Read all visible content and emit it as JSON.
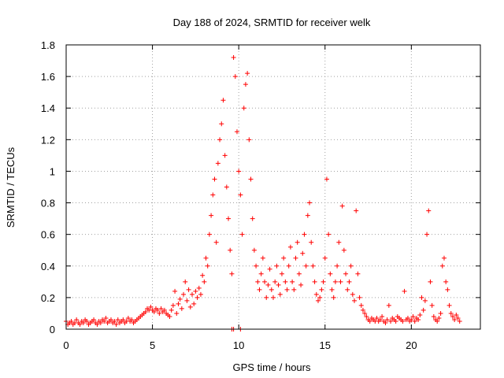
{
  "chart_data": {
    "type": "scatter",
    "title": "Day 188 of 2024, SRMTID for receiver welk",
    "xlabel": "GPS time / hours",
    "ylabel": "SRMTID / TECUs",
    "xlim": [
      0,
      24
    ],
    "ylim": [
      0,
      1.8
    ],
    "xticks": [
      0,
      5,
      10,
      15,
      20
    ],
    "yticks": [
      0,
      0.2,
      0.4,
      0.6,
      0.8,
      1,
      1.2,
      1.4,
      1.6,
      1.8
    ],
    "xtick_labels": [
      "0",
      "5",
      "10",
      "15",
      "20"
    ],
    "ytick_labels": [
      "0",
      "0.2",
      "0.4",
      "0.6",
      "0.8",
      "1",
      "1.2",
      "1.4",
      "1.6",
      "1.8"
    ],
    "grid": true,
    "marker": "+",
    "color": "#ff0000",
    "series": [
      {
        "name": "SRMTID",
        "points": [
          [
            0.0,
            0.05
          ],
          [
            0.1,
            0.03
          ],
          [
            0.2,
            0.04
          ],
          [
            0.3,
            0.05
          ],
          [
            0.4,
            0.03
          ],
          [
            0.5,
            0.04
          ],
          [
            0.6,
            0.06
          ],
          [
            0.7,
            0.04
          ],
          [
            0.8,
            0.03
          ],
          [
            0.9,
            0.05
          ],
          [
            1.0,
            0.04
          ],
          [
            1.1,
            0.06
          ],
          [
            1.2,
            0.05
          ],
          [
            1.3,
            0.03
          ],
          [
            1.4,
            0.04
          ],
          [
            1.5,
            0.05
          ],
          [
            1.6,
            0.06
          ],
          [
            1.7,
            0.04
          ],
          [
            1.8,
            0.03
          ],
          [
            1.9,
            0.05
          ],
          [
            2.0,
            0.04
          ],
          [
            2.1,
            0.06
          ],
          [
            2.2,
            0.05
          ],
          [
            2.3,
            0.07
          ],
          [
            2.4,
            0.04
          ],
          [
            2.5,
            0.05
          ],
          [
            2.6,
            0.06
          ],
          [
            2.7,
            0.04
          ],
          [
            2.8,
            0.05
          ],
          [
            2.9,
            0.03
          ],
          [
            3.0,
            0.06
          ],
          [
            3.1,
            0.04
          ],
          [
            3.2,
            0.05
          ],
          [
            3.3,
            0.06
          ],
          [
            3.4,
            0.04
          ],
          [
            3.5,
            0.05
          ],
          [
            3.6,
            0.07
          ],
          [
            3.7,
            0.05
          ],
          [
            3.8,
            0.06
          ],
          [
            3.9,
            0.04
          ],
          [
            4.0,
            0.05
          ],
          [
            4.1,
            0.06
          ],
          [
            4.2,
            0.07
          ],
          [
            4.3,
            0.08
          ],
          [
            4.4,
            0.09
          ],
          [
            4.5,
            0.1
          ],
          [
            4.6,
            0.11
          ],
          [
            4.7,
            0.13
          ],
          [
            4.8,
            0.12
          ],
          [
            4.9,
            0.14
          ],
          [
            5.0,
            0.12
          ],
          [
            5.1,
            0.11
          ],
          [
            5.2,
            0.13
          ],
          [
            5.3,
            0.12
          ],
          [
            5.4,
            0.1
          ],
          [
            5.5,
            0.13
          ],
          [
            5.6,
            0.11
          ],
          [
            5.7,
            0.12
          ],
          [
            5.8,
            0.1
          ],
          [
            5.9,
            0.09
          ],
          [
            6.0,
            0.08
          ],
          [
            6.1,
            0.12
          ],
          [
            6.2,
            0.15
          ],
          [
            6.3,
            0.24
          ],
          [
            6.4,
            0.1
          ],
          [
            6.5,
            0.16
          ],
          [
            6.6,
            0.19
          ],
          [
            6.7,
            0.13
          ],
          [
            6.8,
            0.22
          ],
          [
            6.9,
            0.3
          ],
          [
            7.0,
            0.18
          ],
          [
            7.1,
            0.25
          ],
          [
            7.2,
            0.14
          ],
          [
            7.3,
            0.22
          ],
          [
            7.4,
            0.16
          ],
          [
            7.5,
            0.24
          ],
          [
            7.6,
            0.2
          ],
          [
            7.7,
            0.26
          ],
          [
            7.8,
            0.22
          ],
          [
            7.9,
            0.34
          ],
          [
            8.0,
            0.3
          ],
          [
            8.1,
            0.45
          ],
          [
            8.2,
            0.4
          ],
          [
            8.3,
            0.6
          ],
          [
            8.4,
            0.72
          ],
          [
            8.5,
            0.85
          ],
          [
            8.6,
            0.95
          ],
          [
            8.7,
            0.55
          ],
          [
            8.8,
            1.05
          ],
          [
            8.9,
            1.2
          ],
          [
            9.0,
            1.3
          ],
          [
            9.1,
            1.45
          ],
          [
            9.2,
            1.1
          ],
          [
            9.3,
            0.9
          ],
          [
            9.4,
            0.7
          ],
          [
            9.5,
            0.5
          ],
          [
            9.6,
            0.35
          ],
          [
            9.7,
            1.72
          ],
          [
            9.8,
            1.6
          ],
          [
            9.9,
            1.25
          ],
          [
            10.0,
            1.0
          ],
          [
            10.1,
            0.85
          ],
          [
            10.2,
            0.6
          ],
          [
            10.3,
            1.4
          ],
          [
            10.4,
            1.55
          ],
          [
            10.5,
            1.62
          ],
          [
            10.6,
            1.2
          ],
          [
            10.7,
            0.95
          ],
          [
            10.8,
            0.7
          ],
          [
            10.9,
            0.5
          ],
          [
            11.0,
            0.4
          ],
          [
            11.1,
            0.3
          ],
          [
            11.2,
            0.25
          ],
          [
            11.3,
            0.35
          ],
          [
            11.4,
            0.45
          ],
          [
            11.5,
            0.3
          ],
          [
            11.6,
            0.2
          ],
          [
            11.7,
            0.28
          ],
          [
            11.8,
            0.38
          ],
          [
            11.9,
            0.25
          ],
          [
            12.0,
            0.2
          ],
          [
            12.1,
            0.3
          ],
          [
            12.2,
            0.4
          ],
          [
            12.3,
            0.28
          ],
          [
            12.4,
            0.22
          ],
          [
            12.5,
            0.35
          ],
          [
            12.6,
            0.45
          ],
          [
            12.7,
            0.3
          ],
          [
            12.8,
            0.25
          ],
          [
            12.9,
            0.4
          ],
          [
            13.0,
            0.52
          ],
          [
            13.1,
            0.3
          ],
          [
            13.2,
            0.25
          ],
          [
            13.3,
            0.45
          ],
          [
            13.4,
            0.55
          ],
          [
            13.5,
            0.35
          ],
          [
            13.6,
            0.28
          ],
          [
            13.7,
            0.48
          ],
          [
            13.8,
            0.6
          ],
          [
            13.9,
            0.4
          ],
          [
            14.0,
            0.72
          ],
          [
            14.1,
            0.8
          ],
          [
            14.2,
            0.55
          ],
          [
            14.3,
            0.4
          ],
          [
            14.4,
            0.3
          ],
          [
            14.5,
            0.22
          ],
          [
            14.6,
            0.18
          ],
          [
            14.7,
            0.2
          ],
          [
            14.8,
            0.25
          ],
          [
            14.9,
            0.3
          ],
          [
            15.0,
            0.45
          ],
          [
            15.1,
            0.95
          ],
          [
            15.2,
            0.6
          ],
          [
            15.3,
            0.35
          ],
          [
            15.4,
            0.25
          ],
          [
            15.5,
            0.2
          ],
          [
            15.6,
            0.3
          ],
          [
            15.7,
            0.4
          ],
          [
            15.8,
            0.55
          ],
          [
            15.9,
            0.3
          ],
          [
            16.0,
            0.78
          ],
          [
            16.1,
            0.5
          ],
          [
            16.2,
            0.35
          ],
          [
            16.3,
            0.25
          ],
          [
            16.4,
            0.3
          ],
          [
            16.5,
            0.4
          ],
          [
            16.6,
            0.22
          ],
          [
            16.7,
            0.18
          ],
          [
            16.8,
            0.75
          ],
          [
            16.9,
            0.35
          ],
          [
            17.0,
            0.2
          ],
          [
            17.1,
            0.15
          ],
          [
            17.2,
            0.12
          ],
          [
            17.3,
            0.1
          ],
          [
            17.4,
            0.08
          ],
          [
            17.5,
            0.06
          ],
          [
            17.6,
            0.05
          ],
          [
            17.7,
            0.07
          ],
          [
            17.8,
            0.06
          ],
          [
            17.9,
            0.05
          ],
          [
            18.0,
            0.07
          ],
          [
            18.1,
            0.05
          ],
          [
            18.2,
            0.06
          ],
          [
            18.3,
            0.08
          ],
          [
            18.4,
            0.05
          ],
          [
            18.5,
            0.04
          ],
          [
            18.6,
            0.06
          ],
          [
            18.7,
            0.15
          ],
          [
            18.8,
            0.05
          ],
          [
            18.9,
            0.07
          ],
          [
            19.0,
            0.06
          ],
          [
            19.1,
            0.05
          ],
          [
            19.2,
            0.08
          ],
          [
            19.3,
            0.07
          ],
          [
            19.4,
            0.06
          ],
          [
            19.5,
            0.05
          ],
          [
            19.6,
            0.24
          ],
          [
            19.7,
            0.06
          ],
          [
            19.8,
            0.07
          ],
          [
            19.9,
            0.05
          ],
          [
            20.0,
            0.06
          ],
          [
            20.1,
            0.08
          ],
          [
            20.2,
            0.05
          ],
          [
            20.3,
            0.07
          ],
          [
            20.4,
            0.06
          ],
          [
            20.5,
            0.09
          ],
          [
            20.6,
            0.2
          ],
          [
            20.7,
            0.12
          ],
          [
            20.8,
            0.18
          ],
          [
            20.9,
            0.6
          ],
          [
            21.0,
            0.75
          ],
          [
            21.1,
            0.3
          ],
          [
            21.2,
            0.15
          ],
          [
            21.3,
            0.08
          ],
          [
            21.4,
            0.06
          ],
          [
            21.5,
            0.05
          ],
          [
            21.6,
            0.07
          ],
          [
            21.7,
            0.1
          ],
          [
            21.8,
            0.4
          ],
          [
            21.9,
            0.45
          ],
          [
            22.0,
            0.3
          ],
          [
            22.1,
            0.25
          ],
          [
            22.2,
            0.15
          ],
          [
            22.3,
            0.1
          ],
          [
            22.4,
            0.08
          ],
          [
            22.5,
            0.06
          ],
          [
            22.6,
            0.09
          ],
          [
            22.7,
            0.07
          ],
          [
            22.8,
            0.05
          ],
          [
            9.6,
            0.0
          ],
          [
            9.7,
            0.0
          ],
          [
            10.1,
            0.0
          ]
        ]
      }
    ]
  }
}
